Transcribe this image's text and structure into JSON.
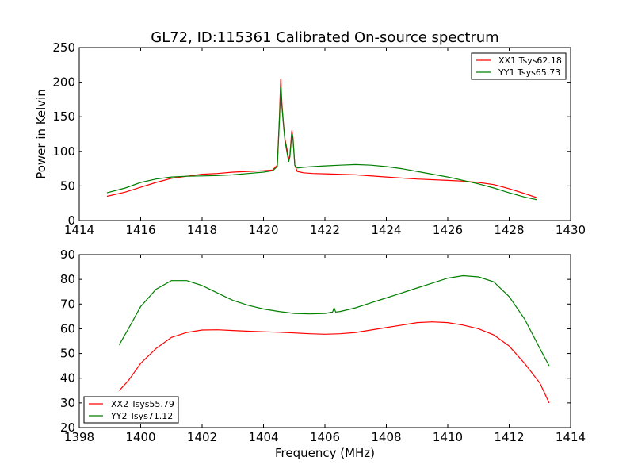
{
  "figure": {
    "title": "GL72, ID:115361 Calibrated On-source spectrum",
    "ylabel": "Power in Kelvin",
    "xlabel": "Frequency (MHz)"
  },
  "chart_data": [
    {
      "type": "line",
      "title": "GL72, ID:115361 Calibrated On-source spectrum",
      "xlabel": "",
      "ylabel": "Power in Kelvin",
      "xlim": [
        1414,
        1430
      ],
      "ylim": [
        0,
        250
      ],
      "xticks": [
        1414,
        1416,
        1418,
        1420,
        1422,
        1424,
        1426,
        1428,
        1430
      ],
      "yticks": [
        0,
        50,
        100,
        150,
        200,
        250
      ],
      "legend_position": "top-right",
      "grid": false,
      "series": [
        {
          "name": "XX1 Tsys62.18",
          "color": "#ff0000",
          "points": [
            [
              1414.9,
              35
            ],
            [
              1415.5,
              41
            ],
            [
              1416,
              48
            ],
            [
              1416.5,
              55
            ],
            [
              1417,
              61
            ],
            [
              1417.5,
              64
            ],
            [
              1418,
              67
            ],
            [
              1418.5,
              68
            ],
            [
              1419,
              70
            ],
            [
              1419.5,
              71
            ],
            [
              1420,
              72
            ],
            [
              1420.3,
              73
            ],
            [
              1420.45,
              80
            ],
            [
              1420.52,
              150
            ],
            [
              1420.56,
              205
            ],
            [
              1420.6,
              170
            ],
            [
              1420.65,
              140
            ],
            [
              1420.7,
              118
            ],
            [
              1420.78,
              100
            ],
            [
              1420.82,
              87
            ],
            [
              1420.86,
              95
            ],
            [
              1420.92,
              130
            ],
            [
              1420.96,
              120
            ],
            [
              1421.02,
              80
            ],
            [
              1421.1,
              71
            ],
            [
              1421.3,
              69
            ],
            [
              1421.6,
              68
            ],
            [
              1422,
              67.5
            ],
            [
              1423,
              66
            ],
            [
              1424,
              63
            ],
            [
              1425,
              60
            ],
            [
              1426,
              58
            ],
            [
              1426.5,
              57
            ],
            [
              1427,
              55
            ],
            [
              1427.5,
              52
            ],
            [
              1428,
              46
            ],
            [
              1428.5,
              39
            ],
            [
              1428.9,
              33
            ]
          ]
        },
        {
          "name": "YY1 Tsys65.73",
          "color": "#007f00",
          "points": [
            [
              1414.9,
              40
            ],
            [
              1415.5,
              47
            ],
            [
              1416,
              55
            ],
            [
              1416.5,
              60
            ],
            [
              1417,
              63
            ],
            [
              1417.5,
              64
            ],
            [
              1418,
              64.5
            ],
            [
              1418.5,
              65
            ],
            [
              1419,
              66
            ],
            [
              1419.5,
              68
            ],
            [
              1420,
              70
            ],
            [
              1420.3,
              72
            ],
            [
              1420.45,
              78
            ],
            [
              1420.52,
              145
            ],
            [
              1420.56,
              193
            ],
            [
              1420.6,
              165
            ],
            [
              1420.65,
              138
            ],
            [
              1420.7,
              115
            ],
            [
              1420.78,
              95
            ],
            [
              1420.82,
              85
            ],
            [
              1420.86,
              92
            ],
            [
              1420.92,
              125
            ],
            [
              1420.96,
              118
            ],
            [
              1421.02,
              80
            ],
            [
              1421.1,
              76
            ],
            [
              1421.3,
              77
            ],
            [
              1421.6,
              78
            ],
            [
              1422,
              79
            ],
            [
              1422.5,
              80
            ],
            [
              1423,
              81
            ],
            [
              1423.5,
              80
            ],
            [
              1424,
              78
            ],
            [
              1424.5,
              75
            ],
            [
              1425,
              71
            ],
            [
              1425.5,
              67
            ],
            [
              1426,
              63
            ],
            [
              1426.5,
              58
            ],
            [
              1427,
              53
            ],
            [
              1427.5,
              47
            ],
            [
              1428,
              40
            ],
            [
              1428.5,
              34
            ],
            [
              1428.9,
              30
            ]
          ]
        }
      ]
    },
    {
      "type": "line",
      "title": "",
      "xlabel": "Frequency (MHz)",
      "ylabel": "",
      "xlim": [
        1398,
        1414
      ],
      "ylim": [
        20,
        90
      ],
      "xticks": [
        1398,
        1400,
        1402,
        1404,
        1406,
        1408,
        1410,
        1412,
        1414
      ],
      "yticks": [
        20,
        30,
        40,
        50,
        60,
        70,
        80,
        90
      ],
      "legend_position": "bottom-left",
      "grid": false,
      "series": [
        {
          "name": "XX2 Tsys55.79",
          "color": "#ff0000",
          "points": [
            [
              1399.3,
              35
            ],
            [
              1399.6,
              39
            ],
            [
              1400,
              46
            ],
            [
              1400.5,
              52
            ],
            [
              1401,
              56.5
            ],
            [
              1401.5,
              58.5
            ],
            [
              1402,
              59.5
            ],
            [
              1402.5,
              59.6
            ],
            [
              1403,
              59.3
            ],
            [
              1403.5,
              59
            ],
            [
              1404,
              58.8
            ],
            [
              1404.5,
              58.6
            ],
            [
              1405,
              58.3
            ],
            [
              1405.5,
              58
            ],
            [
              1406,
              57.8
            ],
            [
              1406.5,
              58
            ],
            [
              1407,
              58.5
            ],
            [
              1407.5,
              59.5
            ],
            [
              1408,
              60.5
            ],
            [
              1408.5,
              61.5
            ],
            [
              1409,
              62.5
            ],
            [
              1409.5,
              62.8
            ],
            [
              1410,
              62.5
            ],
            [
              1410.5,
              61.5
            ],
            [
              1411,
              60
            ],
            [
              1411.5,
              57.5
            ],
            [
              1412,
              53
            ],
            [
              1412.5,
              46
            ],
            [
              1413,
              38
            ],
            [
              1413.3,
              30
            ]
          ]
        },
        {
          "name": "YY2 Tsys71.12",
          "color": "#007f00",
          "points": [
            [
              1399.3,
              53.5
            ],
            [
              1399.6,
              60
            ],
            [
              1400,
              69
            ],
            [
              1400.5,
              76
            ],
            [
              1401,
              79.5
            ],
            [
              1401.5,
              79.5
            ],
            [
              1402,
              77.5
            ],
            [
              1402.5,
              74.5
            ],
            [
              1403,
              71.5
            ],
            [
              1403.5,
              69.5
            ],
            [
              1404,
              68
            ],
            [
              1404.5,
              67
            ],
            [
              1405,
              66.2
            ],
            [
              1405.5,
              66
            ],
            [
              1406,
              66.2
            ],
            [
              1406.25,
              66.8
            ],
            [
              1406.3,
              68.5
            ],
            [
              1406.35,
              66.8
            ],
            [
              1406.5,
              67
            ],
            [
              1407,
              68.5
            ],
            [
              1407.5,
              70.5
            ],
            [
              1408,
              72.5
            ],
            [
              1408.5,
              74.5
            ],
            [
              1409,
              76.5
            ],
            [
              1409.5,
              78.5
            ],
            [
              1410,
              80.5
            ],
            [
              1410.5,
              81.5
            ],
            [
              1411,
              81
            ],
            [
              1411.5,
              79
            ],
            [
              1412,
              73
            ],
            [
              1412.5,
              64
            ],
            [
              1413,
              52
            ],
            [
              1413.3,
              45
            ]
          ]
        }
      ]
    }
  ]
}
